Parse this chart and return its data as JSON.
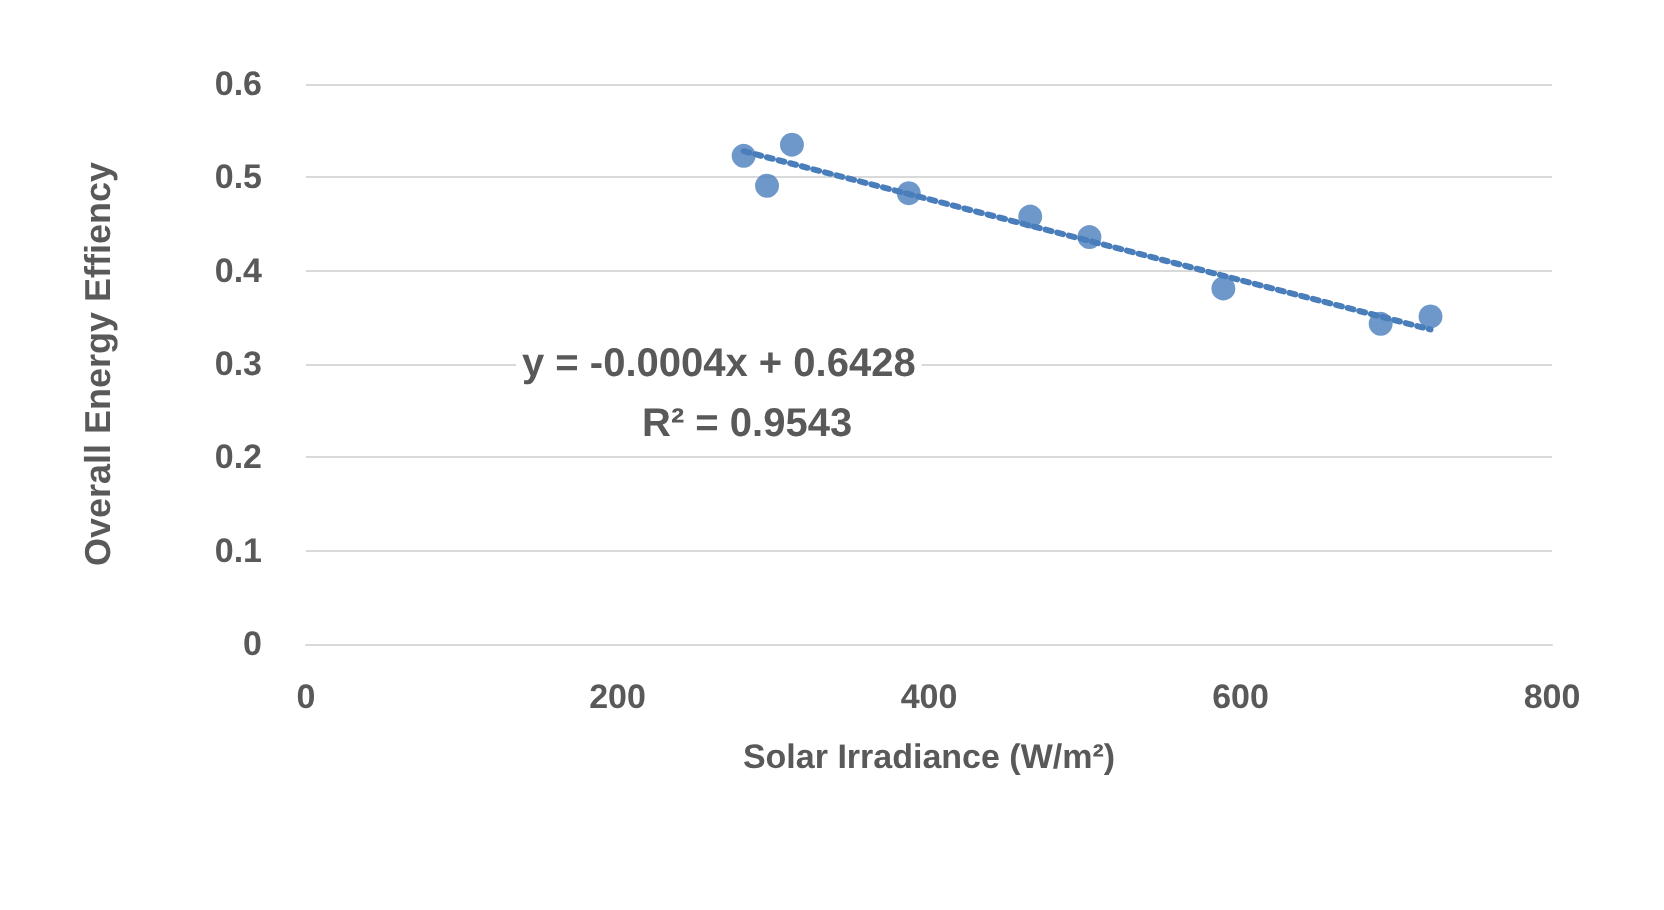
{
  "chart_data": {
    "type": "scatter",
    "xlabel": "Solar Irradiance (W/m²)",
    "ylabel": "Overall Energy Effiency",
    "xlim": [
      0,
      800
    ],
    "xticks": [
      0,
      200,
      400,
      600,
      800
    ],
    "ylim": [
      0,
      0.6
    ],
    "yticks": [
      0,
      0.1,
      0.2,
      0.3,
      0.4,
      0.5,
      0.6
    ],
    "grid": "y",
    "marker": "circle",
    "series": [
      {
        "color": "#4a7ebb",
        "x": [
          281,
          296,
          312,
          387,
          465,
          503,
          589,
          690,
          722
        ],
        "values": [
          0.523,
          0.491,
          0.535,
          0.483,
          0.458,
          0.436,
          0.381,
          0.343,
          0.351
        ]
      },
      {
        "type": "line",
        "color": "#4a7ebb",
        "line_style": "dotted",
        "marker": "none",
        "x": [
          281,
          722
        ],
        "values": [
          0.528,
          0.337
        ]
      }
    ],
    "annotations": [
      "y = -0.0004x + 0.6428",
      "R² = 0.9543"
    ]
  }
}
